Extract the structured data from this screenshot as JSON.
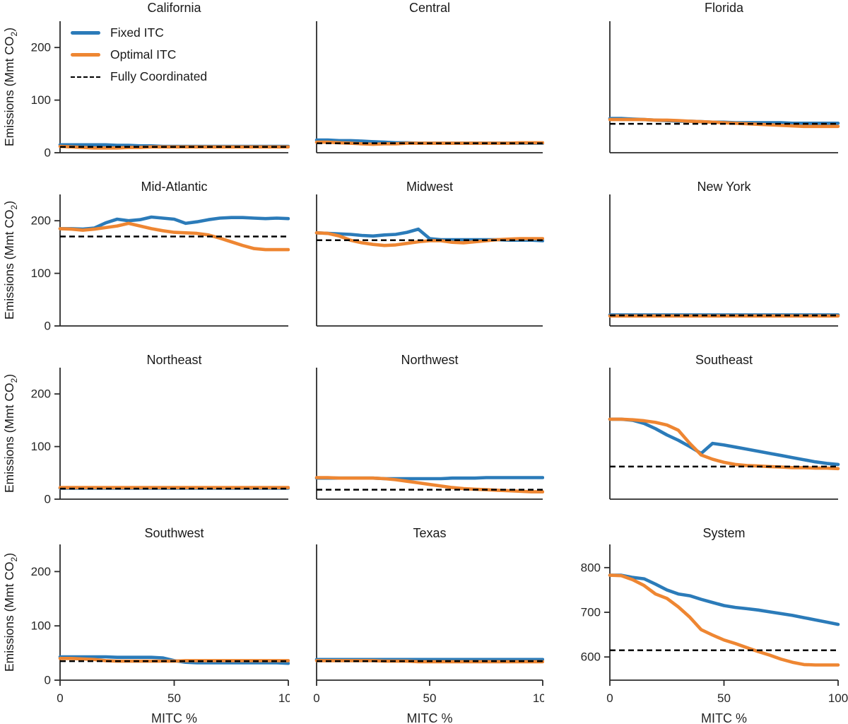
{
  "page": {
    "background": "#ffffff"
  },
  "colors": {
    "fixed": "#2b7bb9",
    "optimal": "#ee8632",
    "coordinated": "#000000",
    "spine": "#2b2b2b",
    "text": "#262626"
  },
  "axis": {
    "ylabel_pre": "Emissions (Mmt CO",
    "ylabel_sub": "2",
    "ylabel_post": ")",
    "xlabel": "MITC %"
  },
  "legend": {
    "items": [
      {
        "label": "Fixed ITC",
        "style": "solid",
        "color": "#2b7bb9"
      },
      {
        "label": "Optimal ITC",
        "style": "solid",
        "color": "#ee8632"
      },
      {
        "label": "Fully Coordinated",
        "style": "dashed",
        "color": "#000000"
      }
    ]
  },
  "chart_data": {
    "type": "line",
    "x_label": "MITC %",
    "y_label": "Emissions (Mmt CO2)",
    "x_ticks": [
      0,
      50,
      100
    ],
    "y_ticks_standard": [
      0,
      100,
      200
    ],
    "y_ticks_system": [
      600,
      700,
      800
    ],
    "xlim": [
      0,
      100
    ],
    "ylim_standard": [
      0,
      250
    ],
    "ylim_system": [
      548,
      852
    ],
    "grid": false,
    "legend_position": "upper-left of first facet",
    "x_values": [
      0,
      5,
      10,
      15,
      20,
      25,
      30,
      35,
      40,
      45,
      50,
      55,
      60,
      65,
      70,
      75,
      80,
      85,
      90,
      95,
      100
    ],
    "facets": [
      {
        "title": "California",
        "y_axis": "standard",
        "series": {
          "fixed": [
            15,
            15,
            15,
            15,
            15,
            14,
            14,
            13,
            13,
            12,
            12,
            12,
            12,
            12,
            12,
            12,
            12,
            12,
            12,
            12,
            12
          ],
          "optimal": [
            12,
            11,
            10,
            9,
            9,
            9,
            10,
            10,
            11,
            11,
            11,
            11,
            11,
            11,
            11,
            11,
            11,
            11,
            11,
            11,
            11
          ],
          "coordinated": 11
        }
      },
      {
        "title": "Central",
        "y_axis": "standard",
        "series": {
          "fixed": [
            24,
            24,
            23,
            23,
            22,
            21,
            20,
            19,
            19,
            18,
            18,
            18,
            18,
            18,
            18,
            18,
            18,
            18,
            18,
            18,
            18
          ],
          "optimal": [
            20,
            20,
            19,
            18,
            17,
            16,
            17,
            17,
            18,
            18,
            18,
            18,
            18,
            18,
            18,
            18,
            18,
            18,
            19,
            19,
            19
          ],
          "coordinated": 18
        }
      },
      {
        "title": "Florida",
        "y_axis": "standard",
        "series": {
          "fixed": [
            65,
            65,
            64,
            63,
            62,
            61,
            60,
            60,
            59,
            58,
            58,
            57,
            57,
            57,
            57,
            57,
            56,
            56,
            56,
            56,
            56
          ],
          "optimal": [
            63,
            63,
            63,
            63,
            62,
            62,
            61,
            60,
            59,
            58,
            57,
            56,
            55,
            54,
            53,
            52,
            51,
            50,
            50,
            50,
            50
          ],
          "coordinated": 55
        }
      },
      {
        "title": "Mid-Atlantic",
        "y_axis": "standard",
        "series": {
          "fixed": [
            185,
            185,
            184,
            186,
            196,
            203,
            200,
            202,
            207,
            205,
            203,
            195,
            198,
            202,
            205,
            206,
            206,
            205,
            204,
            205,
            204
          ],
          "optimal": [
            185,
            184,
            182,
            184,
            187,
            190,
            195,
            190,
            185,
            181,
            178,
            177,
            176,
            173,
            167,
            160,
            153,
            147,
            145,
            145,
            145
          ],
          "coordinated": 170
        }
      },
      {
        "title": "Midwest",
        "y_axis": "standard",
        "series": {
          "fixed": [
            177,
            176,
            175,
            174,
            172,
            171,
            173,
            174,
            178,
            184,
            166,
            164,
            164,
            164,
            164,
            164,
            164,
            163,
            163,
            163,
            162
          ],
          "optimal": [
            177,
            176,
            171,
            163,
            158,
            155,
            153,
            154,
            157,
            160,
            162,
            162,
            159,
            158,
            160,
            162,
            164,
            165,
            166,
            166,
            166
          ],
          "coordinated": 163
        }
      },
      {
        "title": "New York",
        "y_axis": "standard",
        "series": {
          "fixed": [
            21,
            21,
            21,
            21,
            21,
            21,
            21,
            21,
            21,
            21,
            21,
            21,
            21,
            21,
            21,
            21,
            21,
            21,
            21,
            21,
            21
          ],
          "optimal": [
            19,
            19,
            19,
            19,
            19,
            19,
            19,
            19,
            19,
            19,
            19,
            19,
            19,
            19,
            19,
            19,
            19,
            19,
            19,
            19,
            19
          ],
          "coordinated": 20
        }
      },
      {
        "title": "Northeast",
        "y_axis": "standard",
        "series": {
          "fixed": [
            21,
            21,
            21,
            21,
            21,
            21,
            21,
            21,
            21,
            21,
            21,
            21,
            21,
            21,
            21,
            21,
            21,
            21,
            21,
            21,
            21
          ],
          "optimal": [
            22,
            22,
            22,
            22,
            22,
            22,
            22,
            22,
            22,
            22,
            22,
            22,
            22,
            22,
            22,
            22,
            22,
            22,
            22,
            22,
            22
          ],
          "coordinated": 20
        }
      },
      {
        "title": "Northwest",
        "y_axis": "standard",
        "series": {
          "fixed": [
            40,
            40,
            40,
            40,
            40,
            40,
            39,
            39,
            39,
            39,
            39,
            39,
            40,
            40,
            40,
            41,
            41,
            41,
            41,
            41,
            41
          ],
          "optimal": [
            41,
            41,
            40,
            40,
            40,
            40,
            39,
            37,
            34,
            31,
            28,
            25,
            22,
            20,
            19,
            18,
            17,
            16,
            15,
            14,
            14
          ],
          "coordinated": 18
        }
      },
      {
        "title": "Southeast",
        "y_axis": "standard",
        "series": {
          "fixed": [
            152,
            152,
            150,
            144,
            134,
            122,
            112,
            100,
            87,
            106,
            103,
            99,
            95,
            91,
            87,
            83,
            79,
            75,
            71,
            68,
            66
          ],
          "optimal": [
            152,
            152,
            151,
            149,
            146,
            141,
            131,
            106,
            84,
            76,
            70,
            66,
            64,
            63,
            62,
            61,
            60,
            60,
            59,
            59,
            58
          ],
          "coordinated": 62
        }
      },
      {
        "title": "Southwest",
        "y_axis": "standard",
        "series": {
          "fixed": [
            43,
            43,
            43,
            43,
            43,
            42,
            42,
            42,
            42,
            41,
            36,
            33,
            32,
            32,
            32,
            32,
            32,
            32,
            32,
            32,
            31
          ],
          "optimal": [
            40,
            40,
            39,
            38,
            36,
            35,
            35,
            35,
            35,
            35,
            35,
            36,
            36,
            36,
            36,
            36,
            36,
            36,
            36,
            36,
            36
          ],
          "coordinated": 35
        }
      },
      {
        "title": "Texas",
        "y_axis": "standard",
        "series": {
          "fixed": [
            38,
            38,
            38,
            38,
            38,
            38,
            38,
            38,
            38,
            38,
            38,
            38,
            38,
            38,
            38,
            38,
            38,
            38,
            38,
            38,
            38
          ],
          "optimal": [
            36,
            36,
            36,
            36,
            36,
            36,
            35,
            35,
            35,
            34,
            34,
            34,
            34,
            34,
            34,
            34,
            34,
            34,
            34,
            34,
            34
          ],
          "coordinated": 35
        }
      },
      {
        "title": "System",
        "y_axis": "system",
        "series": {
          "fixed": [
            783,
            783,
            778,
            775,
            763,
            750,
            741,
            737,
            729,
            722,
            715,
            711,
            708,
            705,
            701,
            697,
            693,
            688,
            683,
            678,
            673
          ],
          "optimal": [
            783,
            782,
            773,
            760,
            741,
            731,
            712,
            689,
            661,
            649,
            638,
            630,
            621,
            612,
            604,
            595,
            588,
            583,
            582,
            582,
            582
          ],
          "coordinated": 615
        }
      }
    ]
  }
}
